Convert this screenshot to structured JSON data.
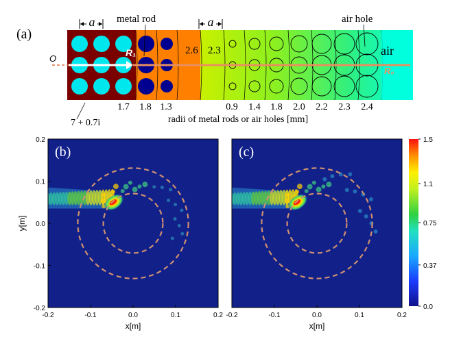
{
  "panel_a": {
    "label": "(a)",
    "lattice_label_left": "a",
    "lattice_label_mid": "a",
    "metal_rod_label": "metal  rod",
    "air_hole_label": "air  hole",
    "air_label": "air",
    "origin_label": "O",
    "r1_label": "R₁",
    "r0_label": "R₀",
    "eps_label": "7 + 0.7i",
    "index_labels": [
      "2.6",
      "2.3"
    ],
    "radii_values": [
      "1.7",
      "1.8",
      "1.3",
      "0.9",
      "1.4",
      "1.8",
      "2.0",
      "2.2",
      "2.3",
      "2.4"
    ],
    "radii_caption": "radii  of  metal  rods  or  air  holes  [mm]",
    "colors": {
      "dark_red": "#7a0000",
      "cyan": "#00e8ee",
      "navy": "#000090",
      "orange": "#ff8000",
      "lime_start": "#c8f000",
      "lime_end": "#00ffe0"
    }
  },
  "panel_b": {
    "label": "(b)"
  },
  "panel_c": {
    "label": "(c)"
  },
  "chart_data": [
    {
      "type": "heatmap",
      "title": "(b)",
      "xlabel": "x[m]",
      "ylabel": "y[m]",
      "xlim": [
        -0.2,
        0.2
      ],
      "ylim": [
        -0.2,
        0.2
      ],
      "xticks": [
        "-0.2",
        "-0.1",
        "0.0",
        "0.1",
        "0.2"
      ],
      "yticks": [
        "0.2",
        "0.1",
        "0.0",
        "-0.1",
        "-0.2"
      ],
      "circles_radius_m": [
        0.07,
        0.13
      ]
    },
    {
      "type": "heatmap",
      "title": "(c)",
      "xlabel": "x[m]",
      "xlim": [
        -0.2,
        0.2
      ],
      "ylim": [
        -0.2,
        0.2
      ],
      "xticks": [
        "-0.2",
        "-0.1",
        "0.0",
        "0.1",
        "0.2"
      ],
      "circles_radius_m": [
        0.07,
        0.13
      ]
    }
  ],
  "colorbar": {
    "ticks": [
      "1.5",
      "1.1",
      "0.75",
      "0.37",
      "0.0"
    ],
    "range": [
      0.0,
      1.5
    ]
  }
}
